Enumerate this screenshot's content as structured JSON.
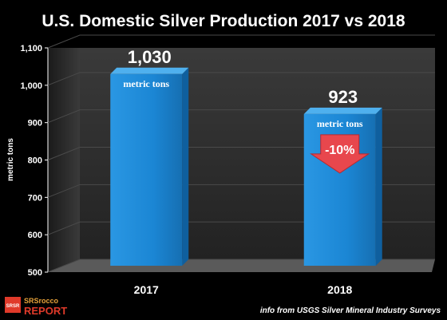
{
  "chart_data": {
    "type": "bar",
    "title": "U.S. Domestic Silver Production 2017 vs 2018",
    "ylabel": "metric tons",
    "ylim": [
      500,
      1100
    ],
    "yticks": [
      "500",
      "600",
      "700",
      "800",
      "900",
      "1,000",
      "1,100"
    ],
    "categories": [
      "2017",
      "2018"
    ],
    "values": [
      1030,
      923
    ],
    "value_labels": [
      "1,030",
      "923"
    ],
    "unit_label": "metric tons",
    "change_label": "-10%",
    "grid": true
  },
  "source_note": "info from USGS Silver Mineral Industry Surveys",
  "logo": {
    "top": "SRSrocco",
    "bottom": "REPORT",
    "badge": "SRSR"
  },
  "colors": {
    "background": "#000000",
    "bar": "#1b86d4",
    "bar_side": "#0f5f9e",
    "bar_top": "#4fb0ee",
    "arrow": "#e8474d",
    "wall": "#3c3c3c",
    "floor": "#5a5a5a"
  }
}
